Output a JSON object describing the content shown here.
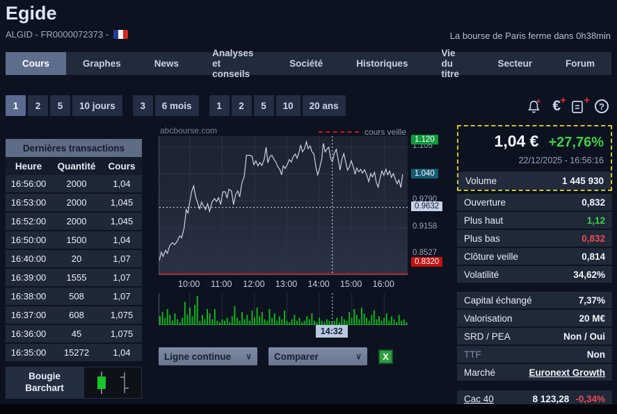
{
  "header": {
    "title": "Egide",
    "subtitle": "ALGID - FR0000072373 -",
    "flag": "france-flag",
    "market_status": "La bourse de Paris ferme dans 0h38min"
  },
  "nav": {
    "tabs": [
      {
        "label": "Cours",
        "active": true
      },
      {
        "label": "Graphes",
        "active": false
      },
      {
        "label": "News",
        "active": false
      },
      {
        "label": "Analyses et conseils",
        "active": false
      },
      {
        "label": "Société",
        "active": false
      },
      {
        "label": "Historiques",
        "active": false
      },
      {
        "label": "Vie du titre",
        "active": false
      },
      {
        "label": "Secteur",
        "active": false
      },
      {
        "label": "Forum",
        "active": false
      }
    ]
  },
  "periods": {
    "groups": [
      {
        "buttons": [
          {
            "label": "1",
            "active": true
          },
          {
            "label": "2",
            "active": false
          },
          {
            "label": "5",
            "active": false
          },
          {
            "label": "10 jours",
            "active": false
          }
        ]
      },
      {
        "buttons": [
          {
            "label": "3",
            "active": false
          },
          {
            "label": "6 mois",
            "active": false
          }
        ]
      },
      {
        "buttons": [
          {
            "label": "1",
            "active": false
          },
          {
            "label": "2",
            "active": false
          },
          {
            "label": "5",
            "active": false
          },
          {
            "label": "10",
            "active": false
          },
          {
            "label": "20 ans",
            "active": false
          }
        ]
      }
    ]
  },
  "toolbar_icons": [
    "alert-bell",
    "euro-add",
    "note-add",
    "help"
  ],
  "transactions": {
    "title": "Dernières transactions",
    "columns": [
      "Heure",
      "Quantité",
      "Cours"
    ],
    "rows": [
      [
        "16:56:00",
        "2000",
        "1,04"
      ],
      [
        "16:53:00",
        "2000",
        "1,045"
      ],
      [
        "16:52:00",
        "2000",
        "1,045"
      ],
      [
        "16:50:00",
        "1500",
        "1,04"
      ],
      [
        "16:40:00",
        "20",
        "1,07"
      ],
      [
        "16:39:00",
        "1555",
        "1,07"
      ],
      [
        "16:38:00",
        "508",
        "1,07"
      ],
      [
        "16:37:00",
        "608",
        "1,075"
      ],
      [
        "16:36:00",
        "45",
        "1,075"
      ],
      [
        "16:35:00",
        "15272",
        "1,04"
      ]
    ]
  },
  "style_selector": {
    "line1": "Bougie",
    "line2": "Barchart"
  },
  "chart": {
    "watermark": "abcbourse.com",
    "legend_label": "cours veille",
    "cursor_time": "14:32"
  },
  "chart_data": {
    "type": "line",
    "x_labels": [
      "10:00",
      "11:00",
      "12:00",
      "13:00",
      "14:00",
      "15:00",
      "16:00"
    ],
    "y_range": [
      0.804,
      1.131
    ],
    "y_gridlines": [
      1.105,
      1.0421,
      0.979,
      0.9158,
      0.8527
    ],
    "price_labels": [
      {
        "text": "1.120",
        "value": 1.12,
        "style": "high"
      },
      {
        "text": "1.105",
        "value": 1.105,
        "style": "tick"
      },
      {
        "text": "1.040",
        "value": 1.04,
        "style": "last"
      },
      {
        "text": "0.9790",
        "value": 0.979,
        "style": "tick"
      },
      {
        "text": "0.9632",
        "value": 0.9632,
        "style": "cursor"
      },
      {
        "text": "0.9158",
        "value": 0.9158,
        "style": "tick"
      },
      {
        "text": "0.8527",
        "value": 0.8527,
        "style": "tick"
      },
      {
        "text": "0.8320",
        "value": 0.832,
        "style": "low"
      }
    ],
    "cursor": {
      "x_frac": 0.695,
      "value": 0.9632,
      "time": "14:32"
    },
    "prev_close": {
      "value": 0.814,
      "clipped_to_bottom": true
    },
    "series": [
      {
        "name": "cours",
        "points": [
          [
            0.0,
            0.838
          ],
          [
            0.008,
            0.858
          ],
          [
            0.015,
            0.848
          ],
          [
            0.025,
            0.862
          ],
          [
            0.032,
            0.855
          ],
          [
            0.042,
            0.873
          ],
          [
            0.052,
            0.88
          ],
          [
            0.062,
            0.876
          ],
          [
            0.072,
            0.884
          ],
          [
            0.082,
            0.896
          ],
          [
            0.09,
            0.892
          ],
          [
            0.1,
            0.916
          ],
          [
            0.108,
            0.958
          ],
          [
            0.115,
            0.95
          ],
          [
            0.122,
            0.976
          ],
          [
            0.13,
            1.0
          ],
          [
            0.138,
            1.014
          ],
          [
            0.146,
            0.988
          ],
          [
            0.154,
            0.974
          ],
          [
            0.162,
            0.96
          ],
          [
            0.17,
            0.976
          ],
          [
            0.178,
            0.966
          ],
          [
            0.186,
            0.958
          ],
          [
            0.194,
            0.972
          ],
          [
            0.202,
            0.954
          ],
          [
            0.212,
            0.976
          ],
          [
            0.222,
            0.984
          ],
          [
            0.23,
            0.977
          ],
          [
            0.238,
            0.986
          ],
          [
            0.247,
            0.97
          ],
          [
            0.255,
            1.0
          ],
          [
            0.265,
            1.0
          ],
          [
            0.272,
            0.986
          ],
          [
            0.28,
            1.006
          ],
          [
            0.29,
            1.002
          ],
          [
            0.298,
            0.97
          ],
          [
            0.307,
            0.994
          ],
          [
            0.315,
            1.002
          ],
          [
            0.323,
            0.988
          ],
          [
            0.332,
            1.022
          ],
          [
            0.341,
            1.036
          ],
          [
            0.35,
            1.086
          ],
          [
            0.362,
            1.086
          ],
          [
            0.372,
            1.084
          ],
          [
            0.38,
            1.064
          ],
          [
            0.388,
            1.073
          ],
          [
            0.396,
            1.061
          ],
          [
            0.404,
            1.069
          ],
          [
            0.412,
            1.062
          ],
          [
            0.421,
            1.076
          ],
          [
            0.429,
            1.105
          ],
          [
            0.436,
            1.068
          ],
          [
            0.444,
            1.083
          ],
          [
            0.452,
            1.086
          ],
          [
            0.46,
            1.077
          ],
          [
            0.468,
            1.07
          ],
          [
            0.476,
            1.059
          ],
          [
            0.484,
            1.053
          ],
          [
            0.491,
            1.04
          ],
          [
            0.498,
            1.061
          ],
          [
            0.506,
            1.055
          ],
          [
            0.514,
            1.064
          ],
          [
            0.522,
            1.076
          ],
          [
            0.53,
            1.07
          ],
          [
            0.538,
            1.083
          ],
          [
            0.546,
            1.089
          ],
          [
            0.553,
            1.079
          ],
          [
            0.561,
            1.093
          ],
          [
            0.568,
            1.11
          ],
          [
            0.575,
            1.094
          ],
          [
            0.583,
            1.101
          ],
          [
            0.591,
            1.118
          ],
          [
            0.598,
            1.101
          ],
          [
            0.606,
            1.108
          ],
          [
            0.613,
            1.094
          ],
          [
            0.621,
            1.089
          ],
          [
            0.629,
            1.058
          ],
          [
            0.636,
            1.04
          ],
          [
            0.644,
            1.056
          ],
          [
            0.652,
            1.076
          ],
          [
            0.659,
            1.114
          ],
          [
            0.666,
            1.094
          ],
          [
            0.674,
            1.101
          ],
          [
            0.681,
            1.105
          ],
          [
            0.688,
            1.079
          ],
          [
            0.695,
            1.071
          ],
          [
            0.703,
            1.091
          ],
          [
            0.711,
            1.1
          ],
          [
            0.719,
            1.074
          ],
          [
            0.726,
            1.051
          ],
          [
            0.733,
            1.076
          ],
          [
            0.741,
            1.09
          ],
          [
            0.749,
            1.069
          ],
          [
            0.756,
            1.051
          ],
          [
            0.763,
            1.058
          ],
          [
            0.771,
            1.073
          ],
          [
            0.779,
            1.059
          ],
          [
            0.786,
            1.041
          ],
          [
            0.793,
            1.056
          ],
          [
            0.801,
            1.047
          ],
          [
            0.809,
            1.053
          ],
          [
            0.816,
            1.044
          ],
          [
            0.824,
            1.052
          ],
          [
            0.832,
            1.041
          ],
          [
            0.841,
            1.024
          ],
          [
            0.849,
            1.043
          ],
          [
            0.856,
            1.035
          ],
          [
            0.864,
            1.046
          ],
          [
            0.872,
            1.021
          ],
          [
            0.879,
            1.011
          ],
          [
            0.886,
            1.031
          ],
          [
            0.894,
            1.049
          ],
          [
            0.902,
            1.039
          ],
          [
            0.91,
            1.053
          ],
          [
            0.917,
            1.04
          ],
          [
            0.925,
            1.049
          ],
          [
            0.932,
            1.034
          ],
          [
            0.94,
            1.043
          ],
          [
            0.947,
            1.031
          ],
          [
            0.955,
            1.019
          ],
          [
            0.962,
            1.028
          ],
          [
            0.97,
            1.01
          ],
          [
            0.977,
            1.041
          ]
        ]
      }
    ],
    "volume_bars": [
      0.3,
      0.45,
      0.25,
      0.55,
      0.35,
      0.15,
      0.4,
      0.2,
      0.1,
      0.25,
      0.8,
      0.35,
      0.6,
      0.3,
      0.7,
      1.0,
      0.15,
      0.35,
      0.2,
      0.55,
      0.4,
      0.2,
      0.55,
      0.15,
      0.1,
      0.2,
      0.15,
      0.25,
      0.1,
      0.3,
      0.65,
      0.25,
      0.15,
      0.45,
      0.2,
      0.35,
      0.15,
      0.5,
      0.25,
      0.6,
      0.3,
      0.45,
      0.2,
      0.15,
      0.55,
      0.25,
      0.4,
      0.15,
      0.3,
      0.2,
      0.5,
      0.15,
      0.1,
      0.2,
      0.35,
      0.15,
      0.25,
      0.1,
      0.15,
      0.3,
      0.2,
      0.4,
      0.15,
      0.1,
      0.25,
      0.15,
      0.1,
      0.2,
      0.15,
      0.1,
      0.15,
      0.25,
      0.1,
      0.3,
      0.2,
      0.15,
      0.45,
      0.25,
      0.55,
      0.35,
      0.2,
      0.6,
      0.4,
      0.25,
      0.15,
      0.35,
      0.5,
      0.2,
      0.3,
      0.15,
      0.25,
      0.4,
      0.15,
      0.3,
      0.2,
      0.1,
      0.35,
      0.15,
      0.2,
      0.1
    ]
  },
  "controls": {
    "line_style": "Ligne continue",
    "compare": "Comparer",
    "export": "excel-export"
  },
  "quote": {
    "price": "1,04 €",
    "change": "+27,76%",
    "datetime": "22/12/2025 - 16:56:16",
    "volume_label": "Volume",
    "volume_value": "1 445 930",
    "stats_top": [
      {
        "label": "Ouverture",
        "value": "0,832"
      },
      {
        "label": "Plus haut",
        "value": "1,12",
        "value_class": "green"
      },
      {
        "label": "Plus bas",
        "value": "0,832",
        "value_class": "red"
      },
      {
        "label": "Clôture veille",
        "value": "0,814"
      },
      {
        "label": "Volatilité",
        "value": "34,62%"
      }
    ],
    "stats_bottom": [
      {
        "label": "Capital échangé",
        "value": "7,37%"
      },
      {
        "label": "Valorisation",
        "value": "20 M€"
      },
      {
        "label": "SRD / PEA",
        "value": "Non / Oui"
      },
      {
        "label": "TTF",
        "value": "Non",
        "label_class": "dim"
      },
      {
        "label": "Marché",
        "value": "Euronext Growth",
        "value_class": "link"
      }
    ],
    "index": {
      "label": "Cac 40",
      "value": "8 123,28",
      "change": "-0,34%"
    }
  },
  "colors": {
    "up_green": "#3bd243",
    "down_red": "#ea4b52",
    "volume_bar": "#0db51e",
    "prev_close_line": "#cc1414",
    "highlight_border": "#d3c527",
    "last_price_bg": "#145c74",
    "high_bg": "#0f9a3c",
    "low_bg": "#c51111"
  }
}
